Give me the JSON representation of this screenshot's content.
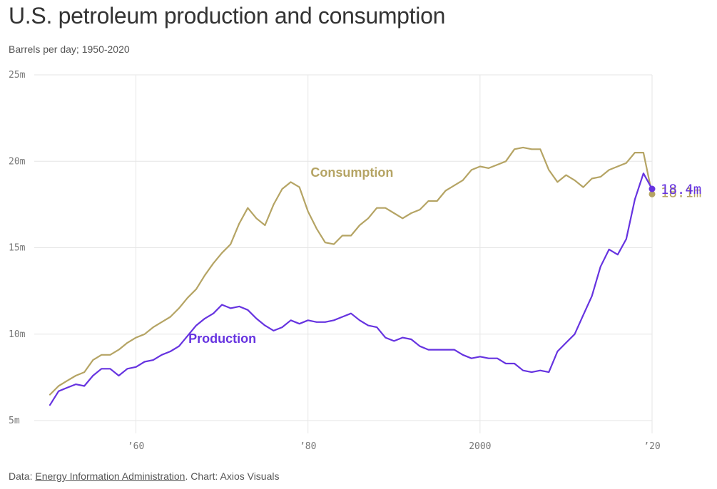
{
  "header": {
    "title": "U.S. petroleum production and consumption",
    "subtitle": "Barrels per day; 1950-2020"
  },
  "footer": {
    "prefix": "Data: ",
    "source_link": "Energy Information Administration",
    "suffix": ". Chart: Axios Visuals"
  },
  "colors": {
    "consumption": "#b5a464",
    "production": "#6633e0",
    "grid": "#e6e6e6",
    "tick": "#777777"
  },
  "chart_data": {
    "type": "line",
    "title": "U.S. petroleum production and consumption",
    "subtitle": "Barrels per day; 1950-2020",
    "xlabel": "",
    "ylabel": "",
    "xlim": [
      1950,
      2020
    ],
    "ylim": [
      5,
      25
    ],
    "grid": true,
    "y_ticks": [
      {
        "value": 5,
        "label": "5m"
      },
      {
        "value": 10,
        "label": "10m"
      },
      {
        "value": 15,
        "label": "15m"
      },
      {
        "value": 20,
        "label": "20m"
      },
      {
        "value": 25,
        "label": "25m"
      }
    ],
    "x_ticks": [
      {
        "value": 1960,
        "label": "’60"
      },
      {
        "value": 1980,
        "label": "’80"
      },
      {
        "value": 2000,
        "label": "2000"
      },
      {
        "value": 2020,
        "label": "’20"
      }
    ],
    "x": [
      1950,
      1951,
      1952,
      1953,
      1954,
      1955,
      1956,
      1957,
      1958,
      1959,
      1960,
      1961,
      1962,
      1963,
      1964,
      1965,
      1966,
      1967,
      1968,
      1969,
      1970,
      1971,
      1972,
      1973,
      1974,
      1975,
      1976,
      1977,
      1978,
      1979,
      1980,
      1981,
      1982,
      1983,
      1984,
      1985,
      1986,
      1987,
      1988,
      1989,
      1990,
      1991,
      1992,
      1993,
      1994,
      1995,
      1996,
      1997,
      1998,
      1999,
      2000,
      2001,
      2002,
      2003,
      2004,
      2005,
      2006,
      2007,
      2008,
      2009,
      2010,
      2011,
      2012,
      2013,
      2014,
      2015,
      2016,
      2017,
      2018,
      2019,
      2020
    ],
    "series": [
      {
        "name": "Consumption",
        "label_x": 1980.3,
        "label_y": 19.1,
        "end_label": "18.1m",
        "values": [
          6.5,
          7.0,
          7.3,
          7.6,
          7.8,
          8.5,
          8.8,
          8.8,
          9.1,
          9.5,
          9.8,
          10.0,
          10.4,
          10.7,
          11.0,
          11.5,
          12.1,
          12.6,
          13.4,
          14.1,
          14.7,
          15.2,
          16.4,
          17.3,
          16.7,
          16.3,
          17.5,
          18.4,
          18.8,
          18.5,
          17.1,
          16.1,
          15.3,
          15.2,
          15.7,
          15.7,
          16.3,
          16.7,
          17.3,
          17.3,
          17.0,
          16.7,
          17.0,
          17.2,
          17.7,
          17.7,
          18.3,
          18.6,
          18.9,
          19.5,
          19.7,
          19.6,
          19.8,
          20.0,
          20.7,
          20.8,
          20.7,
          20.7,
          19.5,
          18.8,
          19.2,
          18.9,
          18.5,
          19.0,
          19.1,
          19.5,
          19.7,
          19.9,
          20.5,
          20.5,
          18.1
        ]
      },
      {
        "name": "Production",
        "label_x": 1966.1,
        "label_y": 9.5,
        "end_label": "18.4m",
        "values": [
          5.9,
          6.7,
          6.9,
          7.1,
          7.0,
          7.6,
          8.0,
          8.0,
          7.6,
          8.0,
          8.1,
          8.4,
          8.5,
          8.8,
          9.0,
          9.3,
          9.9,
          10.5,
          10.9,
          11.2,
          11.7,
          11.5,
          11.6,
          11.4,
          10.9,
          10.5,
          10.2,
          10.4,
          10.8,
          10.6,
          10.8,
          10.7,
          10.7,
          10.8,
          11.0,
          11.2,
          10.8,
          10.5,
          10.4,
          9.8,
          9.6,
          9.8,
          9.7,
          9.3,
          9.1,
          9.1,
          9.1,
          9.1,
          8.8,
          8.6,
          8.7,
          8.6,
          8.6,
          8.3,
          8.3,
          7.9,
          7.8,
          7.9,
          7.8,
          9.0,
          9.5,
          10.0,
          11.1,
          12.2,
          13.9,
          14.9,
          14.6,
          15.5,
          17.8,
          19.3,
          18.4
        ]
      }
    ]
  }
}
